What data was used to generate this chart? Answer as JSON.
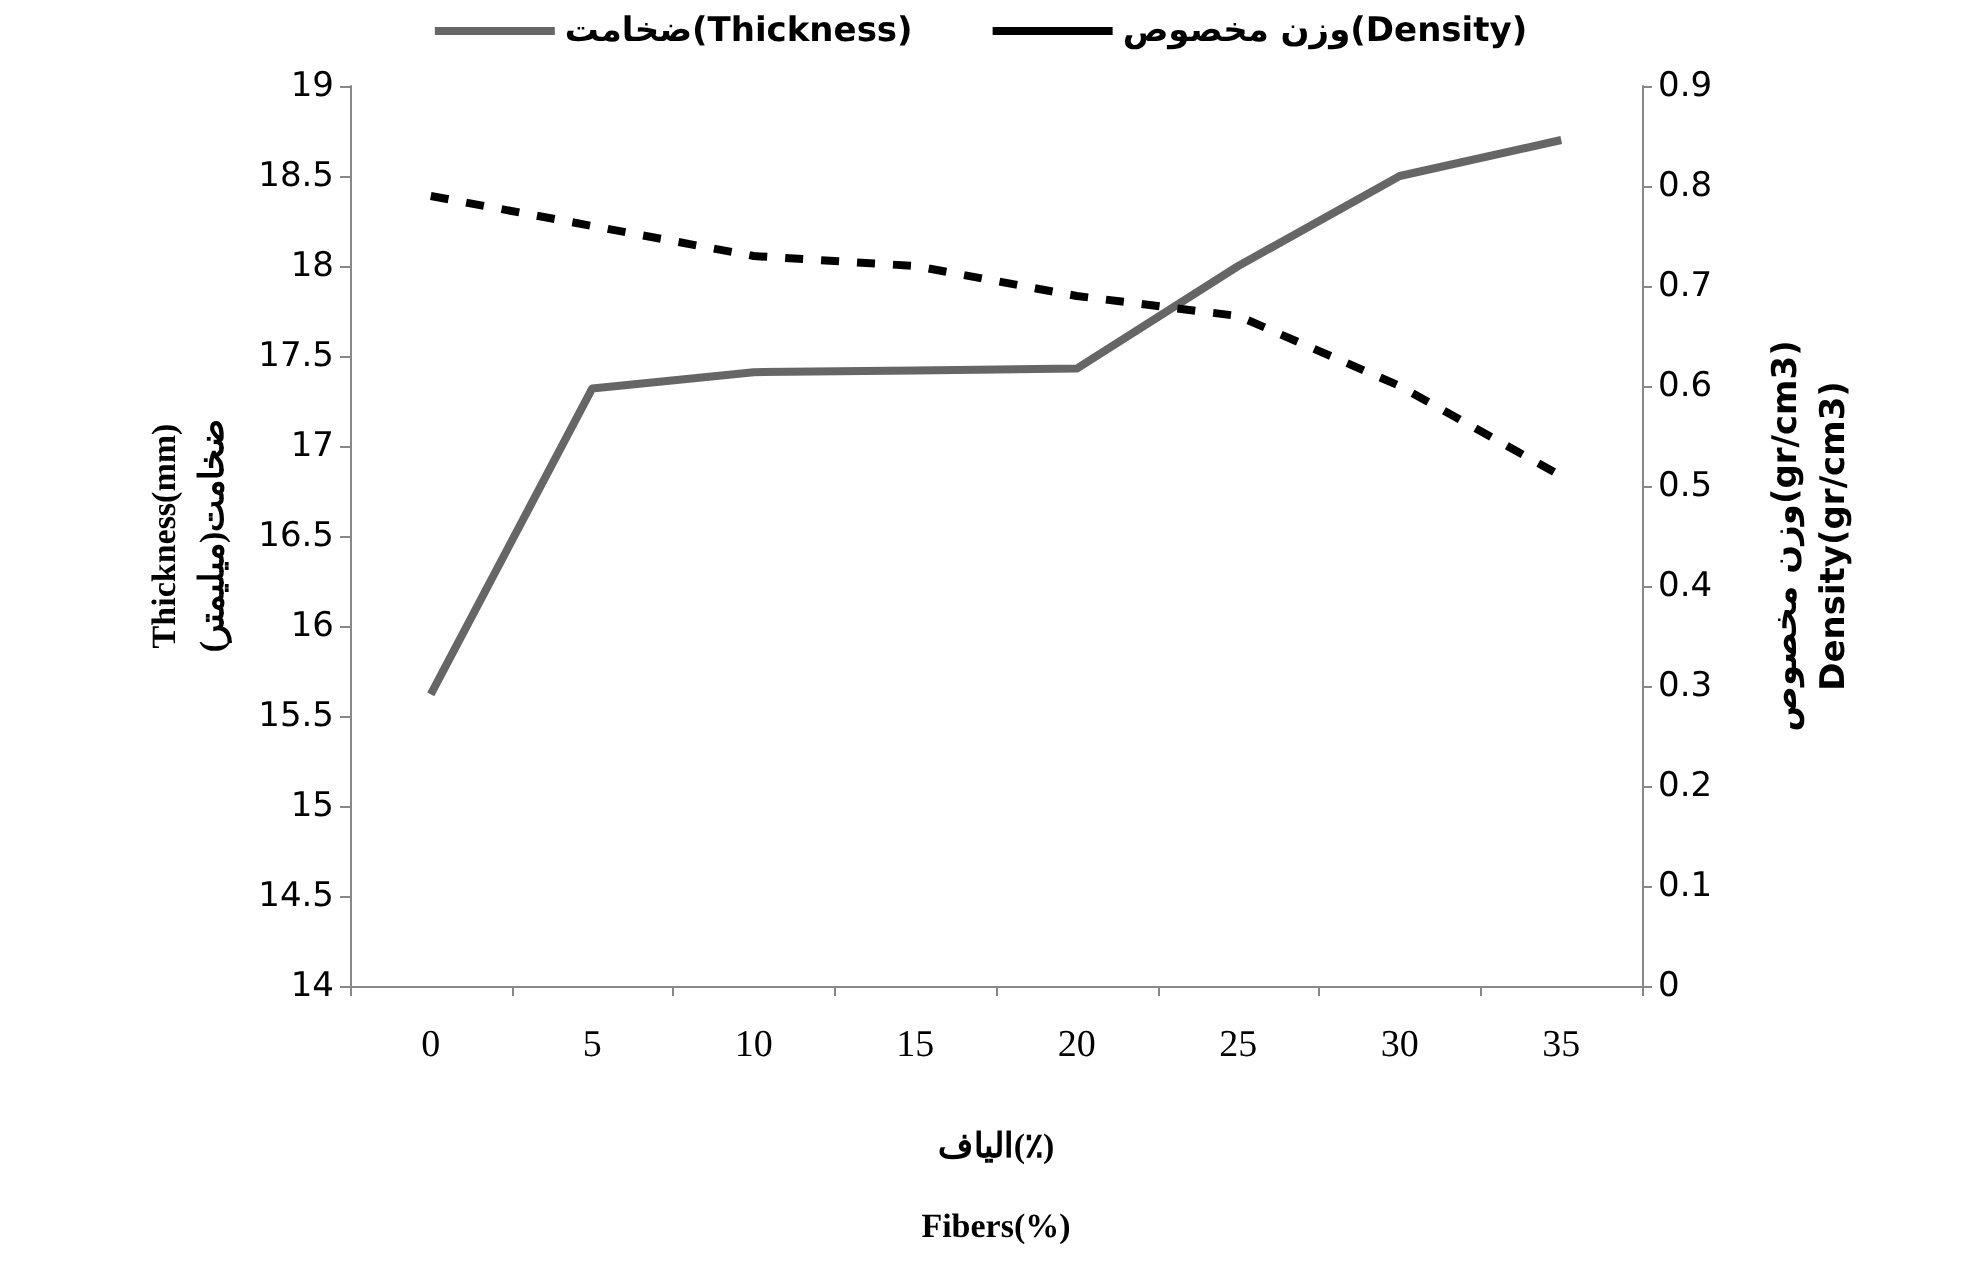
{
  "chart_data": {
    "type": "line",
    "xlabel": "الیاف(٪)\nFibers(%)",
    "ylabel": "Thickness(mm)\nضخامت(میلیمتر)",
    "y2label": "وزن مخصوص(gr/cm3)\nDensity(gr/cm3)",
    "categories": [
      "0",
      "5",
      "10",
      "15",
      "20",
      "25",
      "30",
      "35"
    ],
    "series": [
      {
        "name": "ضخامت(Thickness)",
        "color": "#666666",
        "line_style": "solid",
        "values": [
          15.62,
          17.32,
          17.41,
          17.42,
          17.43,
          18.0,
          18.5,
          18.7
        ]
      },
      {
        "name": "وزن مخصوص(Density)",
        "color": "#000000",
        "line_style": "dashed",
        "axis": "y2",
        "values": [
          0.79,
          0.76,
          0.73,
          0.72,
          0.69,
          0.67,
          0.6,
          0.51
        ]
      }
    ],
    "ylim": [
      14,
      19
    ],
    "yticks": [
      14,
      14.5,
      15,
      15.5,
      16,
      16.5,
      17,
      17.5,
      18,
      18.5,
      19
    ],
    "y2lim": [
      0,
      0.9
    ],
    "y2ticks": [
      0,
      0.1,
      0.2,
      0.3,
      0.4,
      0.5,
      0.6,
      0.7,
      0.8,
      0.9
    ],
    "grid": false,
    "legend": "top",
    "marker": "none"
  }
}
